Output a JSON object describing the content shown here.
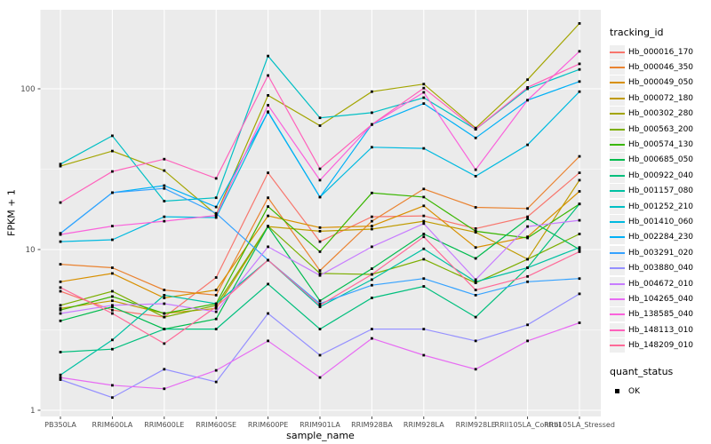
{
  "chart_data": {
    "type": "line",
    "title": "",
    "xlabel": "sample_name",
    "ylabel": "FPKM + 1",
    "y_scale": "log10",
    "y_tick_labels": [
      "1",
      "10",
      "100"
    ],
    "y_tick_values": [
      1,
      10,
      100
    ],
    "y_minor_values": [
      3.162,
      31.62,
      316.2
    ],
    "ylim": [
      0.92,
      310
    ],
    "grid": true,
    "panel_bg": "#EBEBEB",
    "grid_color": "#FFFFFF",
    "tick_label_color": "#4D4D4D",
    "point_color": "#000000",
    "legend_position": "right",
    "categories": [
      "PB350LA",
      "RRIM600LA",
      "RRIM600LE",
      "RRIM600SE",
      "RRIM600PE",
      "RRIM901LA",
      "RRIM928BA",
      "RRIM928LA",
      "RRIM928LE",
      "RRII105LA_Control",
      "RRII105LA_Stressed"
    ],
    "series": [
      {
        "name": "Hb_000016_170",
        "color": "#F8766D",
        "values": [
          5.5,
          4.2,
          3.8,
          6.7,
          30,
          11.2,
          16,
          16.2,
          13.5,
          16,
          30
        ]
      },
      {
        "name": "Hb_000046_350",
        "color": "#EA8331",
        "values": [
          8.1,
          7.7,
          5.6,
          5.2,
          21,
          7.4,
          15,
          23.8,
          18.3,
          18,
          38
        ]
      },
      {
        "name": "Hb_000049_050",
        "color": "#D89000",
        "values": [
          6.3,
          7.1,
          5.0,
          5.6,
          16.2,
          13.7,
          14,
          18.7,
          10.3,
          12,
          23
        ]
      },
      {
        "name": "Hb_000072_180",
        "color": "#C09B00",
        "values": [
          4.3,
          4.8,
          4.0,
          4.3,
          13.9,
          13.0,
          13.4,
          15,
          12.8,
          8.7,
          27
        ]
      },
      {
        "name": "Hb_000302_280",
        "color": "#A3A500",
        "values": [
          33,
          41,
          31,
          16.5,
          91,
          59,
          96,
          107,
          57,
          114,
          255
        ]
      },
      {
        "name": "Hb_000563_200",
        "color": "#7CAE00",
        "values": [
          4.5,
          5.5,
          3.8,
          4.5,
          14,
          7.1,
          7.0,
          8.7,
          6.2,
          8.7,
          12.5
        ]
      },
      {
        "name": "Hb_000574_130",
        "color": "#39B600",
        "values": [
          4.2,
          5.1,
          4.0,
          4.6,
          18.5,
          9.7,
          22.5,
          21.2,
          13,
          11.8,
          19.2
        ]
      },
      {
        "name": "Hb_000685_050",
        "color": "#00BB4E",
        "values": [
          3.6,
          4.4,
          3.2,
          3.7,
          13.9,
          4.8,
          7.6,
          12.5,
          8.8,
          15.5,
          10
        ]
      },
      {
        "name": "Hb_000922_040",
        "color": "#00BF7D",
        "values": [
          2.3,
          2.4,
          3.2,
          3.2,
          6.1,
          3.2,
          5.0,
          5.9,
          3.8,
          7.7,
          19.2
        ]
      },
      {
        "name": "Hb_001157_080",
        "color": "#00C1A3",
        "values": [
          1.66,
          2.74,
          5.2,
          4.6,
          8.6,
          4.4,
          6.5,
          10.1,
          6.3,
          7.7,
          10.3
        ]
      },
      {
        "name": "Hb_001252_210",
        "color": "#00BFC4",
        "values": [
          34,
          51,
          20,
          21,
          160,
          66,
          71,
          88,
          56,
          100,
          132
        ]
      },
      {
        "name": "Hb_001410_060",
        "color": "#00BAE0",
        "values": [
          11.2,
          11.5,
          16,
          15.8,
          72,
          21.2,
          43.3,
          42.6,
          28.6,
          44.8,
          96
        ]
      },
      {
        "name": "Hb_002284_230",
        "color": "#00B0F6",
        "values": [
          12.6,
          22.6,
          25,
          18.4,
          71.5,
          21.2,
          60,
          81,
          49.5,
          85,
          111
        ]
      },
      {
        "name": "Hb_003291_020",
        "color": "#35A2FF",
        "values": [
          12.6,
          22.6,
          24,
          16.8,
          8.6,
          4.6,
          6.0,
          6.6,
          5.2,
          6.3,
          6.6
        ]
      },
      {
        "name": "Hb_003880_040",
        "color": "#9590FF",
        "values": [
          1.55,
          1.2,
          1.8,
          1.5,
          4.0,
          2.2,
          3.2,
          3.2,
          2.7,
          3.4,
          5.3
        ]
      },
      {
        "name": "Hb_004672_010",
        "color": "#C77CFF",
        "values": [
          4.0,
          4.5,
          4.6,
          4.1,
          10.4,
          6.9,
          10.4,
          14.5,
          6.5,
          13.9,
          15.2
        ]
      },
      {
        "name": "Hb_104265_040",
        "color": "#E76BF3",
        "values": [
          1.6,
          1.43,
          1.36,
          1.77,
          2.7,
          1.6,
          2.8,
          2.2,
          1.8,
          2.7,
          3.5
        ]
      },
      {
        "name": "Hb_138585_040",
        "color": "#FA62DB",
        "values": [
          12.4,
          14,
          15,
          16.3,
          79,
          27,
          60,
          95,
          31.4,
          85,
          171
        ]
      },
      {
        "name": "Hb_148113_010",
        "color": "#FF62BC",
        "values": [
          19.6,
          30.6,
          36.5,
          27.7,
          121,
          31.8,
          60,
          101,
          56,
          102,
          143
        ]
      },
      {
        "name": "Hb_148209_010",
        "color": "#FF6A98",
        "values": [
          5.8,
          4.0,
          2.6,
          4.4,
          8.6,
          4.5,
          7.0,
          12.0,
          5.6,
          6.8,
          9.7
        ]
      }
    ],
    "legend": {
      "tracking_title": "tracking_id",
      "quant_title": "quant_status",
      "quant_items": [
        {
          "label": "OK",
          "marker": "black-square"
        }
      ]
    }
  }
}
